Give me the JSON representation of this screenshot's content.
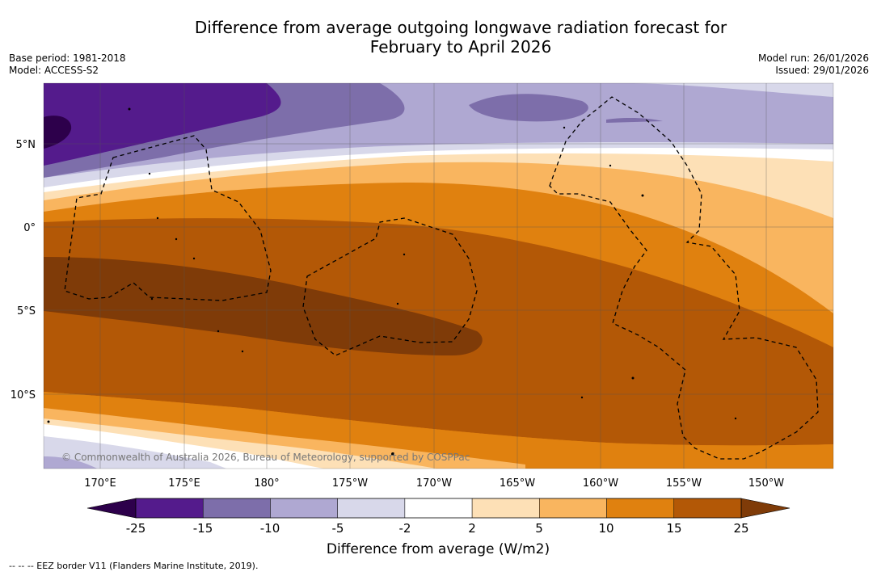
{
  "title": {
    "line1": "Difference from average outgoing longwave radiation forecast for",
    "line2": "February to April 2026"
  },
  "meta": {
    "base_period": "Base period: 1981-2018",
    "model": "Model: ACCESS-S2",
    "model_run": "Model run: 26/01/2026",
    "issued": "Issued: 29/01/2026"
  },
  "map": {
    "lon_labels": [
      "170°E",
      "175°E",
      "180°",
      "175°W",
      "170°W",
      "165°W",
      "160°W",
      "155°W",
      "150°W"
    ],
    "lat_labels": [
      "5°N",
      "0°",
      "5°S",
      "10°S"
    ],
    "copyright": "© Commonwealth of Australia 2026, Bureau of Meteorology, supported by COSPPac"
  },
  "colorbar": {
    "ticks": [
      "-25",
      "-15",
      "-10",
      "-5",
      "-2",
      "2",
      "5",
      "10",
      "15",
      "25"
    ],
    "colors": [
      "#541b8c",
      "#7d6eaa",
      "#afa8d2",
      "#d8d8ea",
      "#ffffff",
      "#fde0b6",
      "#f9b55f",
      "#e0810f",
      "#b35806"
    ],
    "under_color": "#2d004b",
    "over_color": "#7f3b08",
    "label": "Difference from average (W/m2)"
  },
  "footnote": "-- -- -- EEZ border V11 (Flanders Marine Institute, 2019)."
}
